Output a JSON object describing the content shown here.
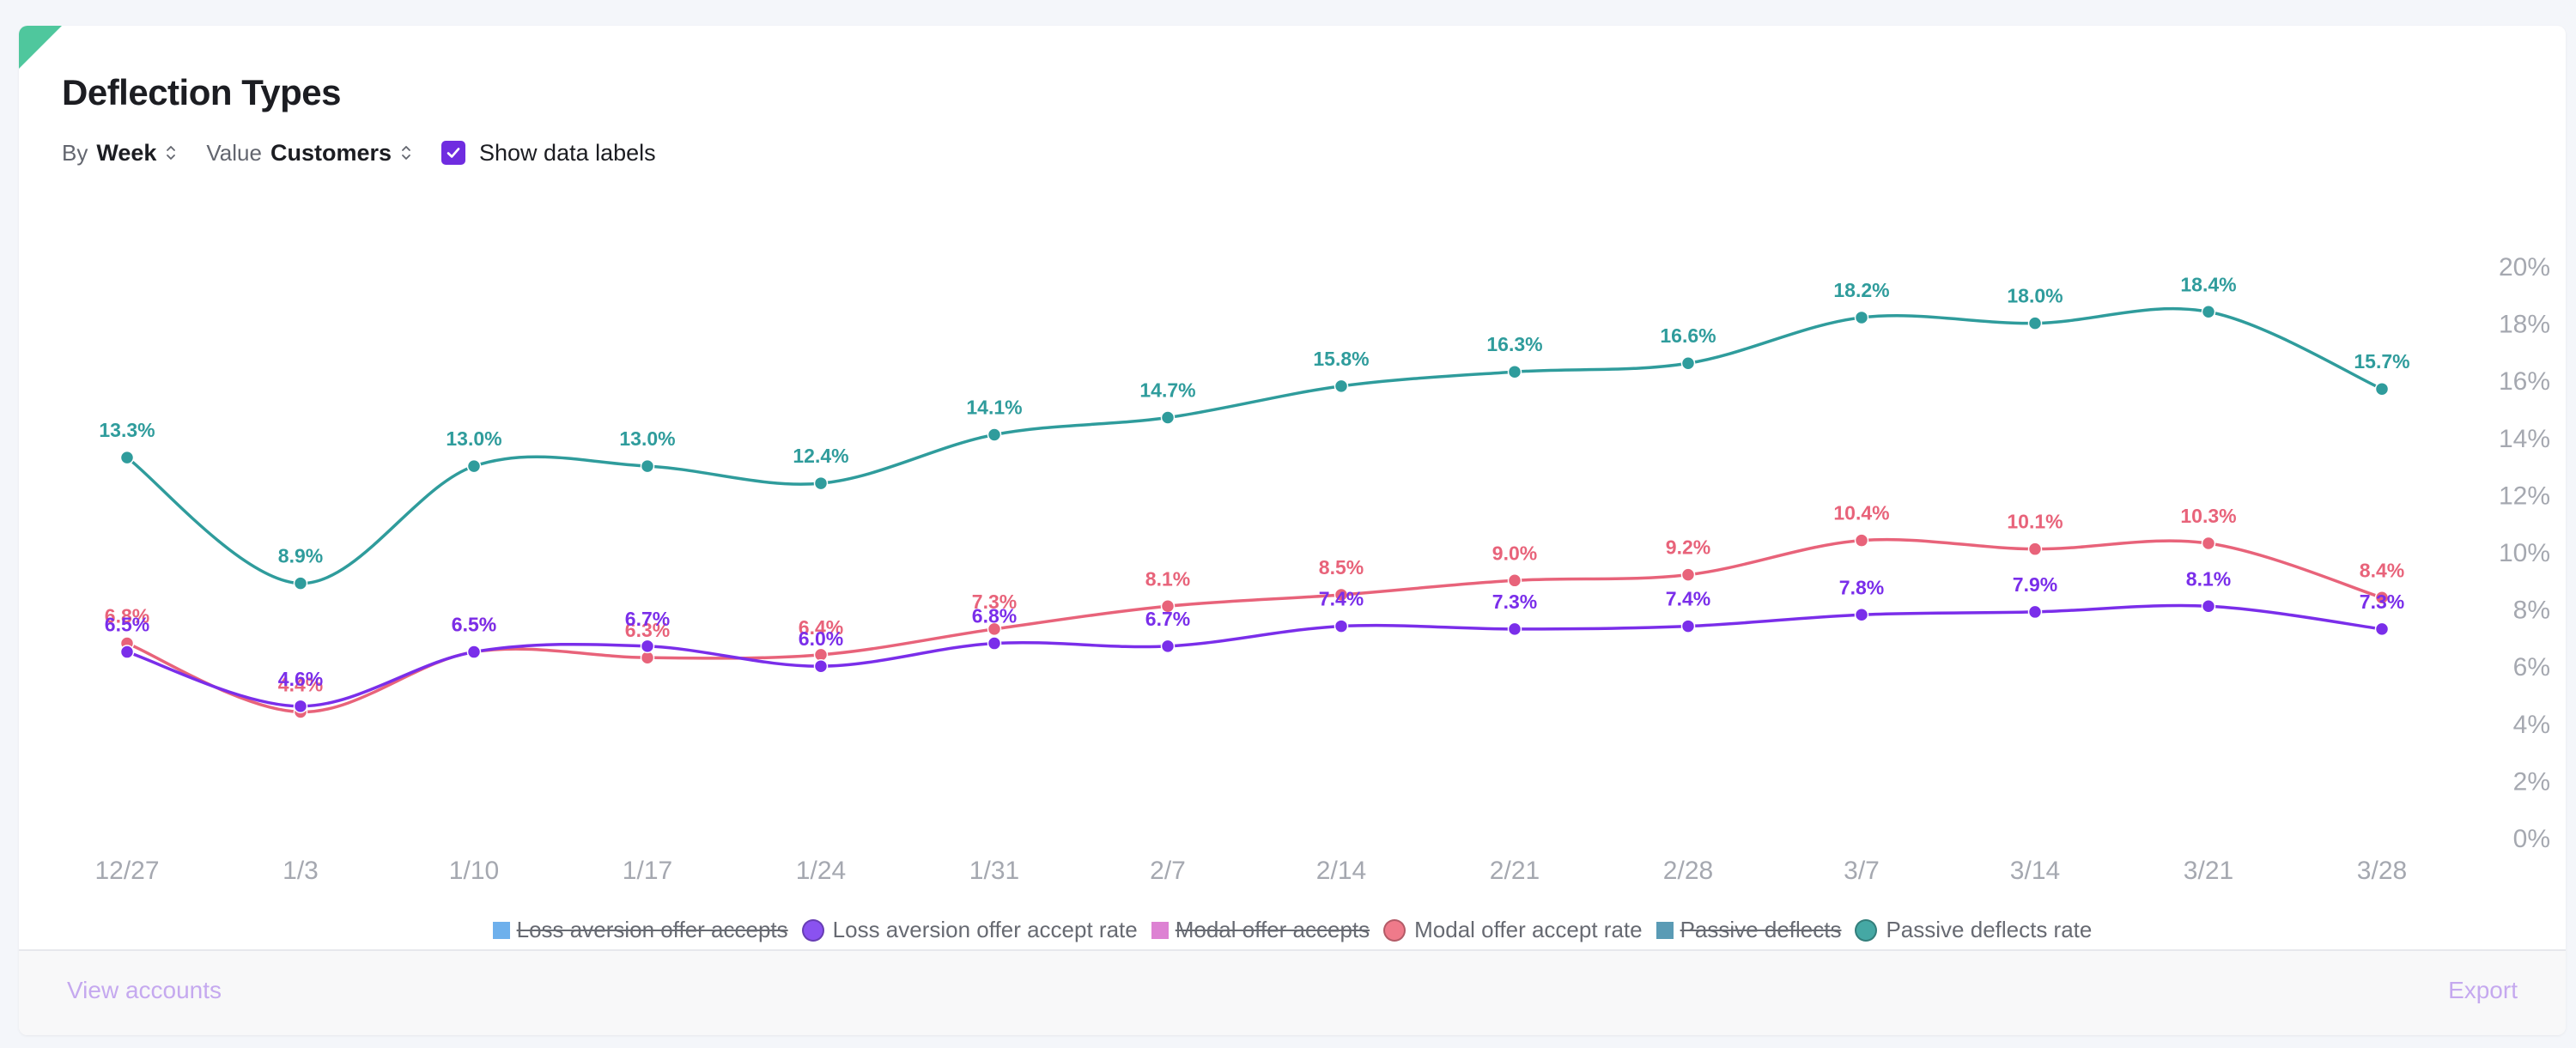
{
  "title": "Deflection Types",
  "controls": {
    "by_label": "By",
    "by_value": "Week",
    "value_label": "Value",
    "value_value": "Customers",
    "show_labels_text": "Show data labels",
    "show_labels_checked": true
  },
  "footer": {
    "left_link": "View accounts",
    "right_link": "Export"
  },
  "chart_data": {
    "type": "line",
    "title": "Deflection Types",
    "xlabel": "",
    "ylabel": "",
    "y_axis_position": "right",
    "ylim": [
      0,
      20
    ],
    "y_ticks": [
      "0%",
      "2%",
      "4%",
      "6%",
      "8%",
      "10%",
      "12%",
      "14%",
      "16%",
      "18%",
      "20%"
    ],
    "categories": [
      "12/27",
      "1/3",
      "1/10",
      "1/17",
      "1/24",
      "1/31",
      "2/7",
      "2/14",
      "2/21",
      "2/28",
      "3/7",
      "3/14",
      "3/21",
      "3/28"
    ],
    "series": [
      {
        "name": "Passive deflects rate",
        "color": "#2f9c9c",
        "values": [
          13.3,
          8.9,
          13.0,
          13.0,
          12.4,
          14.1,
          14.7,
          15.8,
          16.3,
          16.6,
          18.2,
          18.0,
          18.4,
          15.7
        ],
        "labels": [
          "13.3%",
          "8.9%",
          "13.0%",
          "13.0%",
          "12.4%",
          "14.1%",
          "14.7%",
          "15.8%",
          "16.3%",
          "16.6%",
          "18.2%",
          "18.0%",
          "18.4%",
          "15.7%"
        ]
      },
      {
        "name": "Modal offer accept rate",
        "color": "#e8637a",
        "values": [
          6.8,
          4.4,
          6.5,
          6.3,
          6.4,
          7.3,
          8.1,
          8.5,
          9.0,
          9.2,
          10.4,
          10.1,
          10.3,
          8.4
        ],
        "labels": [
          "6.8%",
          "4.4%",
          "6.5%",
          "6.3%",
          "6.4%",
          "7.3%",
          "8.1%",
          "8.5%",
          "9.0%",
          "9.2%",
          "10.4%",
          "10.1%",
          "10.3%",
          "8.4%"
        ]
      },
      {
        "name": "Loss aversion offer accept rate",
        "color": "#7a2eea",
        "values": [
          6.5,
          4.6,
          6.5,
          6.7,
          6.0,
          6.8,
          6.7,
          7.4,
          7.3,
          7.4,
          7.8,
          7.9,
          8.1,
          7.3
        ],
        "labels": [
          "6.5%",
          "4.6%",
          "6.5%",
          "6.7%",
          "6.0%",
          "6.8%",
          "6.7%",
          "7.4%",
          "7.3%",
          "7.4%",
          "7.8%",
          "7.9%",
          "8.1%",
          "7.3%"
        ]
      }
    ],
    "legend": [
      {
        "name": "Loss aversion offer accepts",
        "hidden": true,
        "shape": "square",
        "color": "#55a3e9"
      },
      {
        "name": "Loss aversion offer accept rate",
        "hidden": false,
        "shape": "circle",
        "color": "#8a52f0"
      },
      {
        "name": "Modal offer accepts",
        "hidden": true,
        "shape": "square",
        "color": "#d86dcc"
      },
      {
        "name": "Modal offer accept rate",
        "hidden": false,
        "shape": "circle",
        "color": "#ef7a8a"
      },
      {
        "name": "Passive deflects",
        "hidden": true,
        "shape": "square",
        "color": "#3e8aa9"
      },
      {
        "name": "Passive deflects rate",
        "hidden": false,
        "shape": "circle",
        "color": "#45a8a4"
      }
    ],
    "legend_position": "bottom-center",
    "grid": false
  }
}
